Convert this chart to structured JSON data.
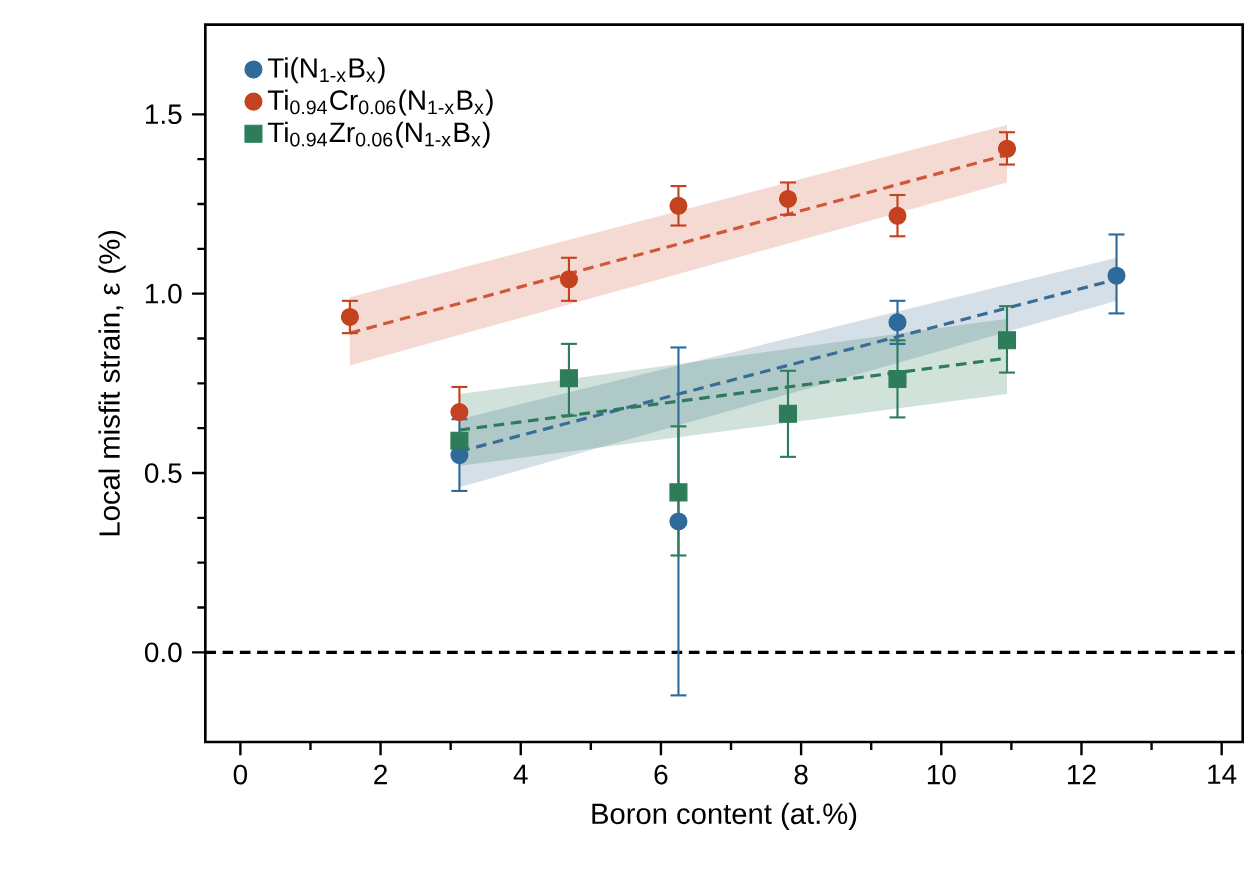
{
  "chart_data": {
    "type": "scatter",
    "xlabel": "Boron content (at.%)",
    "ylabel": "Local misfit strain, ε (%)",
    "xlim": [
      -0.5,
      14.3
    ],
    "ylim": [
      -0.25,
      1.75
    ],
    "xticks": [
      0,
      2,
      4,
      6,
      8,
      10,
      12,
      14
    ],
    "yticks": [
      {
        "value": 0,
        "label": "0.0"
      },
      0.5,
      {
        "value": 1,
        "label": "1.0"
      },
      1.5
    ],
    "legend": "top left",
    "grid": false,
    "series": [
      {
        "type": "line",
        "marker": "none",
        "line_style": "dashed",
        "color": "#d0573a",
        "x": [
          1.5625,
          10.9375
        ],
        "values": [
          0.89,
          1.387
        ],
        "lower": [
          0.8,
          1.31
        ],
        "upper": [
          0.99,
          1.47
        ]
      },
      {
        "type": "line",
        "marker": "none",
        "line_style": "dashed",
        "color": "#3a6d96",
        "x": [
          3.125,
          12.5
        ],
        "values": [
          0.56,
          1.04
        ],
        "lower": [
          0.46,
          0.98
        ],
        "upper": [
          0.65,
          1.1
        ]
      },
      {
        "type": "line",
        "marker": "none",
        "line_style": "dashed",
        "color": "#2f7a5a",
        "x": [
          3.125,
          10.9375
        ],
        "values": [
          0.62,
          0.82
        ],
        "lower": [
          0.52,
          0.72
        ],
        "upper": [
          0.72,
          0.93
        ]
      },
      {
        "name": "Ti(N$_{1-x}$B$_{x}$)",
        "marker": "circle",
        "color": "#2e6a9a",
        "x": [
          3.125,
          6.25,
          9.375,
          12.5
        ],
        "values": [
          0.55,
          0.365,
          0.92,
          1.05
        ],
        "errors": [
          [
            0.45,
            0.65
          ],
          [
            -0.12,
            0.85
          ],
          [
            0.86,
            0.98
          ],
          [
            0.945,
            1.165
          ]
        ]
      },
      {
        "name": "Ti$_{0.94}$Cr$_{0.06}$(N$_{1-x}$B$_{x}$)",
        "marker": "circle",
        "color": "#c4421f",
        "x": [
          1.5625,
          3.125,
          4.6875,
          6.25,
          7.8125,
          9.375,
          10.9375
        ],
        "values": [
          0.935,
          0.67,
          1.04,
          1.245,
          1.264,
          1.217,
          1.404
        ],
        "errors": [
          [
            0.89,
            0.98
          ],
          [
            0.67,
            0.74
          ],
          [
            0.98,
            1.1
          ],
          [
            1.19,
            1.3
          ],
          [
            1.22,
            1.31
          ],
          [
            1.16,
            1.275
          ],
          [
            1.36,
            1.45
          ]
        ]
      },
      {
        "name": "Ti$_{0.94}$Zr$_{0.06}$(N$_{1-x}$B$_{x}$)",
        "marker": "square",
        "color": "#2e7d5a",
        "x": [
          3.125,
          4.6875,
          6.25,
          7.8125,
          9.375,
          10.9375
        ],
        "values": [
          0.59,
          0.764,
          0.446,
          0.665,
          0.762,
          0.87
        ],
        "errors": [
          null,
          [
            0.66,
            0.86
          ],
          [
            0.27,
            0.63
          ],
          [
            0.545,
            0.785
          ],
          [
            0.655,
            0.87
          ],
          [
            0.78,
            0.965
          ]
        ]
      }
    ],
    "ref_lines": [
      {
        "axis": "y",
        "value": 0,
        "color": "#000000",
        "line_style": "dashed"
      }
    ]
  }
}
